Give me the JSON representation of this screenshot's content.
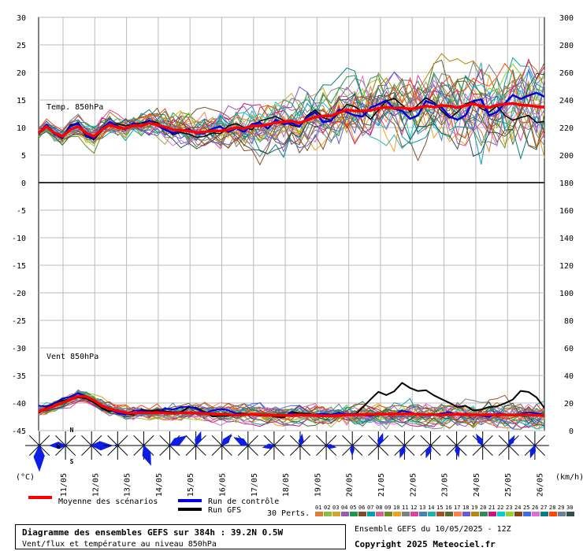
{
  "chart_data": {
    "type": "line",
    "dates": [
      "11/05",
      "12/05",
      "13/05",
      "14/05",
      "15/05",
      "16/05",
      "17/05",
      "18/05",
      "19/05",
      "20/05",
      "21/05",
      "22/05",
      "23/05",
      "24/05",
      "25/05",
      "26/05"
    ],
    "n_steps": 65,
    "left_axis_ticks": [
      "30",
      "25",
      "20",
      "15",
      "10",
      "5",
      "0",
      "-5",
      "-10",
      "-15",
      "-20",
      "-25",
      "-30",
      "-35",
      "-40",
      "-45"
    ],
    "right_axis_ticks": [
      "300",
      "280",
      "260",
      "240",
      "220",
      "200",
      "180",
      "160",
      "140",
      "120",
      "100",
      "80",
      "60",
      "40",
      "20",
      "0"
    ],
    "left_unit": "(°C)",
    "right_unit": "(km/h)",
    "temp": {
      "label": "Temp. 850hPa",
      "ylim": [
        0,
        30
      ],
      "mean": [
        9,
        10.2,
        9,
        8.4,
        9.6,
        10.2,
        9,
        8.4,
        9.6,
        10.5,
        10,
        9.8,
        10.4,
        10.3,
        10.8,
        10.5,
        10.1,
        9.6,
        9.5,
        9.4,
        9.1,
        9.2,
        9.4,
        9.4,
        9.6,
        10,
        9.8,
        10.3,
        10.3,
        10.5,
        10.9,
        11,
        11.2,
        10.8,
        11.4,
        11.9,
        12.1,
        12.1,
        12.7,
        13.2,
        13,
        13,
        13.1,
        13.5,
        13.7,
        13.5,
        13.6,
        13.3,
        13.6,
        13.9,
        13.7,
        14,
        13.9,
        13.6,
        14,
        14.3,
        13.9,
        13.6,
        14.1,
        14.2,
        14.4,
        14.1,
        14,
        13.8,
        13.7
      ],
      "control": [
        9,
        10.5,
        8.8,
        8.2,
        10.2,
        10.8,
        8.6,
        8,
        9.8,
        11,
        10.2,
        9.6,
        10.8,
        10.2,
        11.3,
        10.4,
        9.6,
        9,
        9.4,
        9.7,
        8.9,
        9,
        9.8,
        10.2,
        9.2,
        9.9,
        9.2,
        10.6,
        10.9,
        9.8,
        11.4,
        10.6,
        10.8,
        10.2,
        11.9,
        12.8,
        11,
        11.2,
        13.2,
        12.8,
        12.2,
        12,
        13.6,
        14.2,
        14.9,
        13.4,
        13,
        11.6,
        12.2,
        14.8,
        14.3,
        13.6,
        12,
        11.4,
        12.2,
        14.8,
        15.1,
        12.2,
        12.8,
        14.4,
        15.9,
        15.2,
        15.8,
        16.3,
        15.6
      ],
      "gfs": [
        8.8,
        10.6,
        9.1,
        8,
        10.5,
        10.6,
        8.4,
        7.8,
        9.4,
        10.4,
        10.7,
        10.3,
        10.6,
        10.8,
        11.2,
        10.9,
        9.8,
        8.7,
        9.1,
        8.8,
        8.2,
        8.4,
        9,
        8.9,
        10.3,
        10.7,
        10,
        9.6,
        11.2,
        11.6,
        12,
        11.3,
        10.4,
        10.1,
        12.2,
        13.2,
        11.8,
        11.3,
        12.6,
        14.2,
        13.8,
        12.8,
        11.5,
        13.2,
        14.8,
        15.3,
        14.1,
        12.9,
        14.1,
        15.4,
        14.6,
        13,
        11.7,
        12.8,
        14.3,
        14.8,
        13.4,
        12.8,
        13.9,
        12.2,
        11.3,
        11.8,
        12.2,
        10.9,
        11.1
      ]
    },
    "wind": {
      "label": "Vent 850hPa",
      "ylim": [
        0,
        60
      ],
      "mean": [
        14,
        15.5,
        18,
        20,
        22.4,
        25,
        24.6,
        22,
        18,
        15.8,
        14.2,
        13.1,
        12.6,
        12.9,
        12.7,
        13,
        12.7,
        12.5,
        12.7,
        13,
        12.7,
        12.4,
        12.1,
        11.9,
        11.5,
        11.1,
        11.5,
        11.7,
        11.6,
        11.3,
        11.1,
        11,
        11.1,
        11.4,
        11.2,
        11,
        10.7,
        10.7,
        11,
        11.3,
        11.4,
        11.6,
        11.7,
        12,
        11.9,
        12.2,
        12,
        12.1,
        11.9,
        11.6,
        11.6,
        11.3,
        11.6,
        11.9,
        11.4,
        11.6,
        11.3,
        11.6,
        11.3,
        11.5,
        11.2,
        11.5,
        11.4,
        11.1,
        11
      ],
      "control": [
        18,
        17.6,
        20,
        23,
        24.5,
        27,
        25,
        22,
        18,
        15.6,
        12.5,
        11.6,
        14.5,
        14.5,
        13.5,
        12.8,
        16,
        15.4,
        16.8,
        17.5,
        15.8,
        12.6,
        14.5,
        15.7,
        14.7,
        12.2,
        12,
        11.4,
        10.9,
        11.9,
        11,
        10.8,
        12.6,
        11.1,
        11.1,
        11.8,
        12.3,
        11.6,
        12.9,
        11.9,
        12.3,
        11.2,
        10.6,
        11.7,
        12,
        12,
        14.4,
        13.2,
        11.5,
        11.2,
        11.6,
        12.4,
        13.4,
        11.2,
        12.1,
        11.5,
        10.8,
        9.9,
        12.3,
        12,
        11,
        12.2,
        13.3,
        12.5,
        11.3
      ],
      "gfs": [
        13,
        16.4,
        20,
        21.8,
        22.7,
        24.1,
        23.4,
        20.5,
        16.2,
        13.9,
        14.9,
        12.4,
        11.5,
        15.3,
        14.3,
        14.7,
        13.9,
        13.2,
        13.4,
        16.9,
        16.5,
        13.3,
        10.2,
        10.7,
        10.6,
        12.4,
        12.3,
        11.6,
        10.9,
        11.2,
        10,
        9.4,
        13.5,
        12.6,
        12.3,
        11.2,
        10.3,
        11.1,
        11.6,
        11.3,
        11.2,
        16.8,
        22.6,
        28.1,
        25.8,
        28.5,
        34.6,
        30.9,
        28.7,
        29.3,
        25.6,
        22.8,
        20.1,
        16.9,
        18.1,
        14.6,
        15.3,
        17.1,
        17.6,
        19.8,
        22.5,
        28.8,
        28,
        24.1,
        16.4
      ]
    },
    "wind_roses": [
      {
        "dir": 180,
        "len": 32
      },
      {
        "dir": 270,
        "len": 20
      },
      {
        "dir": 90,
        "len": 26
      },
      {
        "dir": 270,
        "len": 4
      },
      {
        "dir": 160,
        "len": 26
      },
      {
        "dir": 60,
        "len": 24
      },
      {
        "dir": 20,
        "len": 18
      },
      {
        "dir": 40,
        "len": 18
      },
      {
        "dir": 300,
        "len": 20
      },
      {
        "dir": 260,
        "len": 14
      },
      {
        "dir": 10,
        "len": 14
      },
      {
        "dir": 100,
        "len": 12
      },
      {
        "dir": 180,
        "len": 12
      },
      {
        "dir": 20,
        "len": 16
      },
      {
        "dir": 200,
        "len": 16
      },
      {
        "dir": 200,
        "len": 16
      },
      {
        "dir": 170,
        "len": 14
      },
      {
        "dir": 330,
        "len": 16
      },
      {
        "dir": 30,
        "len": 14
      },
      {
        "dir": 200,
        "len": 16
      }
    ],
    "compass": {
      "n": "N",
      "s": "S",
      "w": "W"
    },
    "legend": {
      "mean": "Moyenne des scénarios",
      "control": "Run de contrôle",
      "gfs": "Run GFS",
      "perts": "30 Perts."
    },
    "pert_numbers": [
      "01",
      "02",
      "03",
      "04",
      "05",
      "06",
      "07",
      "08",
      "09",
      "10",
      "11",
      "12",
      "13",
      "14",
      "15",
      "16",
      "17",
      "18",
      "19",
      "20",
      "21",
      "22",
      "23",
      "24",
      "25",
      "26",
      "27",
      "28",
      "29",
      "30"
    ],
    "pert_colors": [
      "#e07b39",
      "#8fbc3f",
      "#d4a52a",
      "#9b59b6",
      "#1a9850",
      "#7f4f24",
      "#00a0b0",
      "#d95f8d",
      "#6b8e23",
      "#f0a020",
      "#808080",
      "#e040a0",
      "#4682b4",
      "#20b2aa",
      "#a0522d",
      "#556b2f",
      "#ff7f50",
      "#6a5acd",
      "#b8860b",
      "#2e8b57",
      "#c71585",
      "#00ced1",
      "#9acd32",
      "#8b4513",
      "#4169e1",
      "#da70d6",
      "#008080",
      "#ff4500",
      "#708090",
      "#2f4f4f"
    ],
    "colors": {
      "mean": "#ff0000",
      "control": "#0000e0",
      "gfs": "#000000",
      "grid": "#bbbbbb",
      "rose": "#0a1ee6"
    }
  },
  "footer": {
    "title": "Diagramme des ensembles GEFS sur 384h : 39.2N 0.5W",
    "subtitle": "Vent/flux et température au niveau 850hPa",
    "run_info": "Ensemble GEFS du 10/05/2025 - 12Z",
    "copyright": "Copyright 2025 Meteociel.fr"
  }
}
